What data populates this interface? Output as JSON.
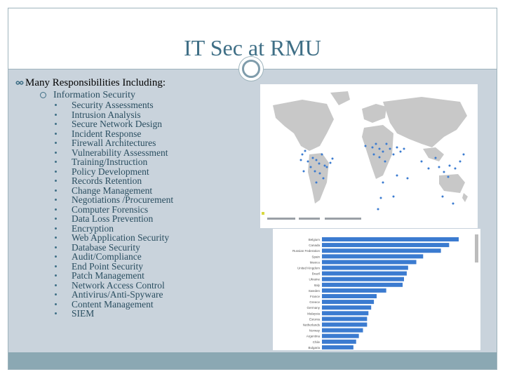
{
  "slide": {
    "title": "IT Sec at RMU",
    "main_bullet": "Many Responsibilities Including:",
    "sub_bullet": "Information Security",
    "items": [
      "Security Assessments",
      "Intrusion Analysis",
      "Secure Network Design",
      "Incident Response",
      "Firewall Architectures",
      "Vulnerability Assessment",
      "Training/Instruction",
      "Policy Development",
      "Records Retention",
      "Change Management",
      "Negotiations /Procurement",
      "Computer Forensics",
      "Data Loss Prevention",
      "Encryption",
      "Web Application Security",
      "Database Security",
      "Audit/Compliance",
      "End Point Security",
      "Patch Management",
      "Network Access Control",
      "Antivirus/Anti-Spyware",
      "Content Management",
      "SIEM"
    ]
  },
  "colors": {
    "title": "#3f6f86",
    "content_bg": "#c9d3dc",
    "footer": "#8ba8b3",
    "bar": "#3b7bd0",
    "map_land": "#c8c8c8",
    "map_point": "#3b7bd0"
  },
  "map_image": {
    "icon": "world-map-attack-origins"
  },
  "bar_chart_image": {
    "icon": "attacks-by-country-bar-chart",
    "country_labels": [
      "Belgium",
      "Canada",
      "Russian Federation",
      "Spain",
      "Mexico",
      "United Kingdom",
      "Brazil",
      "Ukraine",
      "Italy",
      "Sweden",
      "France",
      "Greece",
      "Germany",
      "Malaysia",
      "Estonia",
      "Netherlands",
      "Norway",
      "Argentina",
      "Chile",
      "Bulgaria"
    ],
    "relative_values": [
      1.0,
      0.93,
      0.87,
      0.74,
      0.69,
      0.63,
      0.62,
      0.6,
      0.59,
      0.47,
      0.4,
      0.38,
      0.36,
      0.34,
      0.33,
      0.33,
      0.3,
      0.27,
      0.25,
      0.23
    ]
  }
}
